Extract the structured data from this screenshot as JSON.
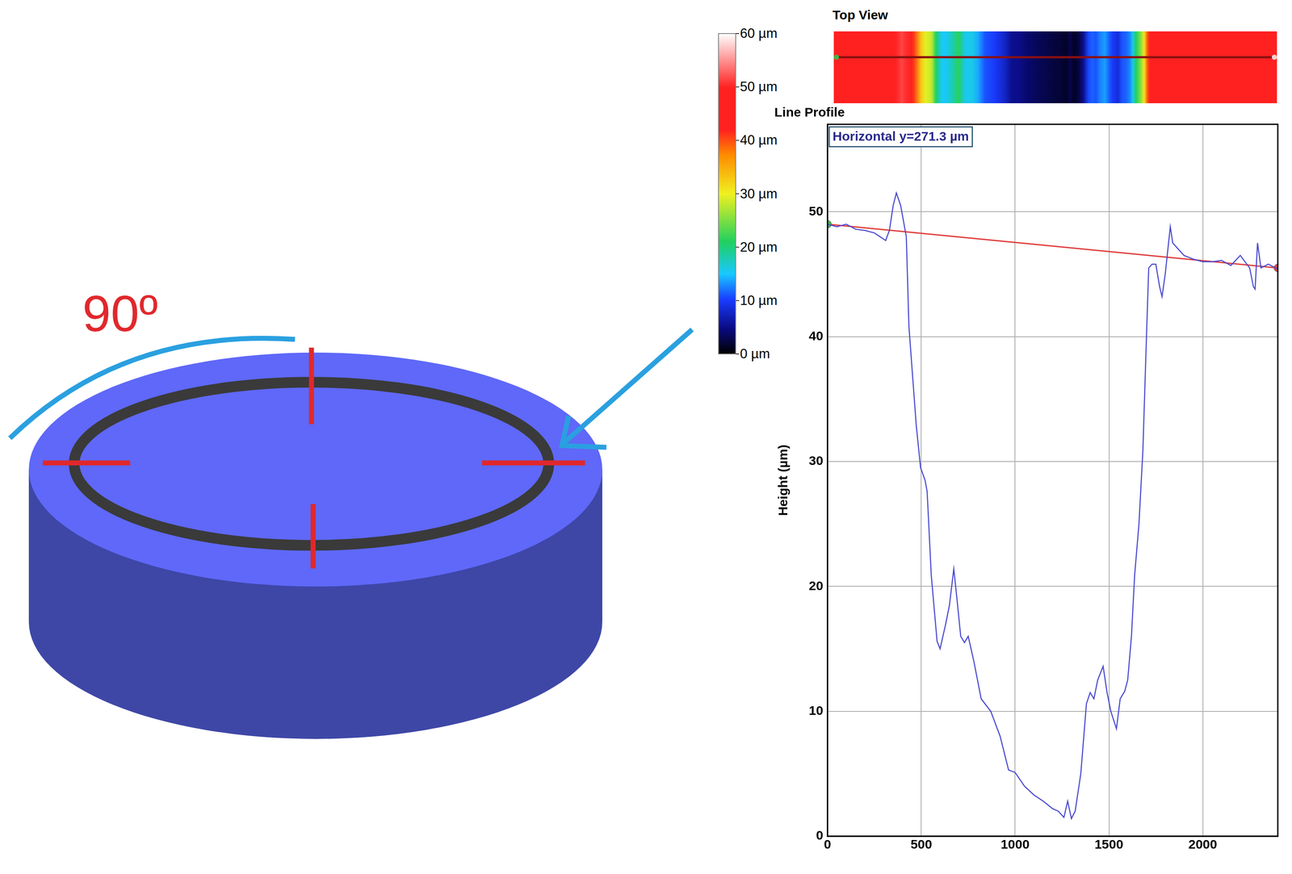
{
  "chart_data": {
    "type": "line",
    "title": "Line Profile",
    "annotation": "Horizontal y=271.3 µm",
    "y_label": "Height (µm)",
    "xlim": [
      0,
      2400
    ],
    "ylim": [
      0,
      57
    ],
    "xticks": [
      0,
      500,
      1000,
      1500,
      2000
    ],
    "yticks": [
      0,
      10,
      20,
      30,
      40,
      50
    ],
    "grid": true,
    "series": [
      {
        "color": "#4848d0",
        "x": [
          0,
          50,
          100,
          150,
          200,
          250,
          310,
          330,
          350,
          367,
          390,
          420,
          434,
          473,
          496,
          520,
          531,
          553,
          584,
          600,
          630,
          650,
          673,
          690,
          710,
          730,
          750,
          780,
          819,
          870,
          920,
          965,
          1000,
          1050,
          1100,
          1150,
          1200,
          1230,
          1260,
          1280,
          1300,
          1320,
          1350,
          1380,
          1400,
          1420,
          1440,
          1469,
          1490,
          1510,
          1540,
          1560,
          1584,
          1600,
          1620,
          1637,
          1660,
          1681,
          1700,
          1712,
          1730,
          1750,
          1770,
          1783,
          1800,
          1827,
          1840,
          1870,
          1900,
          1950,
          2000,
          2050,
          2100,
          2150,
          2200,
          2250,
          2270,
          2279,
          2292,
          2310,
          2350,
          2400
        ],
        "values": [
          49.0,
          48.8,
          49.0,
          48.6,
          48.5,
          48.3,
          47.7,
          48.5,
          50.5,
          51.5,
          50.5,
          48.0,
          40.8,
          32.9,
          29.5,
          28.5,
          27.6,
          20.9,
          15.6,
          15.0,
          17.0,
          18.5,
          21.4,
          19.0,
          16.0,
          15.5,
          16.0,
          14.0,
          11.0,
          10.0,
          8.0,
          5.3,
          5.1,
          4.0,
          3.3,
          2.8,
          2.2,
          2.0,
          1.5,
          2.8,
          1.4,
          2.0,
          5.0,
          10.6,
          11.5,
          11.0,
          12.5,
          13.6,
          11.5,
          10.0,
          8.6,
          11.0,
          11.6,
          12.5,
          16.0,
          20.9,
          25.0,
          30.9,
          40.0,
          45.5,
          45.8,
          45.8,
          44.0,
          43.2,
          45.0,
          48.8,
          47.5,
          47.0,
          46.5,
          46.2,
          46.0,
          46.0,
          46.1,
          45.7,
          46.5,
          45.5,
          44.0,
          43.8,
          47.5,
          45.5,
          45.8,
          45.4
        ]
      },
      {
        "color": "#e03c3c",
        "marker": "circle",
        "colors": [
          "#3fb548",
          "#e04848"
        ],
        "x": [
          0,
          2400
        ],
        "values": [
          49.0,
          45.5
        ]
      }
    ]
  },
  "colorbar": {
    "range": [
      0,
      60
    ],
    "ticks": [
      {
        "value": 60,
        "label": "60 µm"
      },
      {
        "value": 50,
        "label": "50 µm"
      },
      {
        "value": 40,
        "label": "40 µm"
      },
      {
        "value": 30,
        "label": "30 µm"
      },
      {
        "value": 20,
        "label": "20 µm"
      },
      {
        "value": 10,
        "label": "10 µm"
      },
      {
        "value": 0,
        "label": "0 µm"
      }
    ]
  },
  "top_view": {
    "title": "Top View"
  },
  "diagram": {
    "angle_label": "90º"
  }
}
